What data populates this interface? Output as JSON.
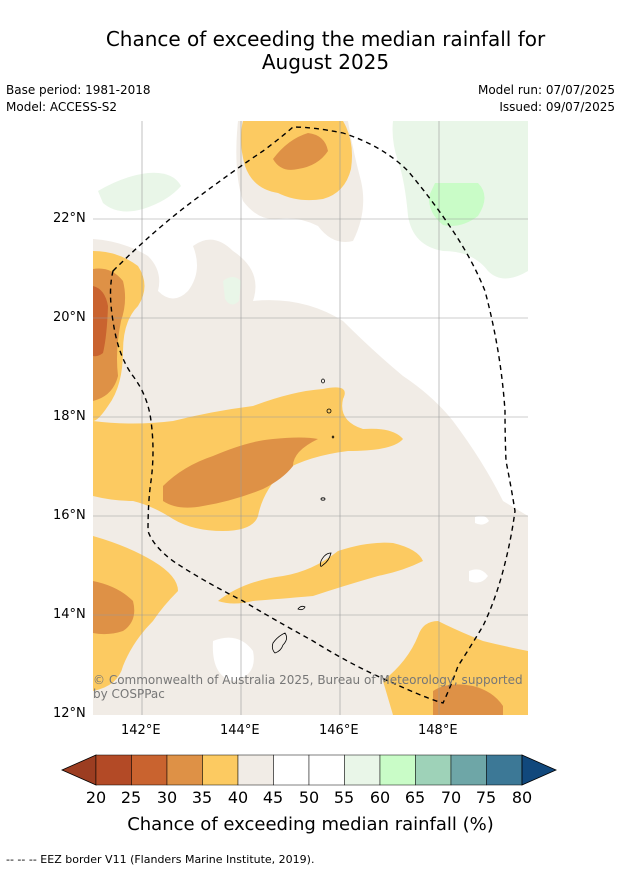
{
  "title_line1": "Chance of exceeding the median rainfall for",
  "title_line2": "August 2025",
  "base_period": "Base period: 1981-2018",
  "model": "Model: ACCESS-S2",
  "model_run": "Model run: 07/07/2025",
  "issued": "Issued: 09/07/2025",
  "lat_labels": [
    "22°N",
    "20°N",
    "18°N",
    "16°N",
    "14°N",
    "12°N"
  ],
  "lon_labels": [
    "142°E",
    "144°E",
    "146°E",
    "148°E"
  ],
  "copyright": "© Commonwealth of Australia 2025, Bureau of Meteorology, supported by COSPPac",
  "colorbar": {
    "ticks": [
      "20",
      "25",
      "30",
      "35",
      "40",
      "45",
      "50",
      "55",
      "60",
      "65",
      "70",
      "75",
      "80"
    ],
    "colors": [
      "#9c3d21",
      "#b34a26",
      "#c9632f",
      "#de9146",
      "#fcca61",
      "#f1ece6",
      "#ffffff",
      "#ffffff",
      "#e9f6e8",
      "#c9fcc7",
      "#9ed2b8",
      "#6ea6a7",
      "#3c7896",
      "#11487c"
    ],
    "label": "Chance of exceeding median rainfall (%)"
  },
  "footer": "--  --  -- EEZ border V11 (Flanders Marine Institute, 2019)."
}
